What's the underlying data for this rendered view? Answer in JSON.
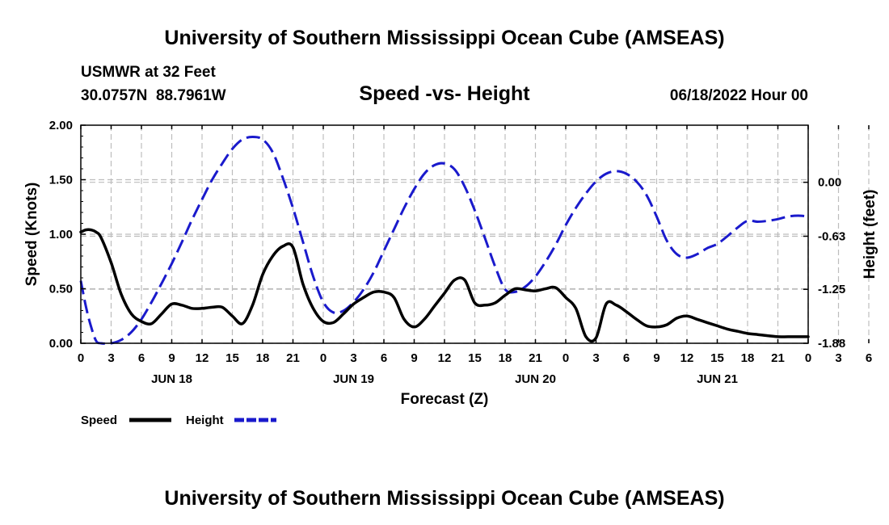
{
  "header": {
    "title": "University of Southern Mississippi Ocean Cube (AMSEAS)",
    "station": "USMWR at 32 Feet",
    "location": "30.0757N  88.7961W",
    "plot_title": "Speed -vs- Height",
    "issued": "06/18/2022 Hour 00"
  },
  "footer": {
    "title": "University of Southern Mississippi Ocean Cube (AMSEAS)"
  },
  "colors": {
    "speed": "#000000",
    "height": "#1a1acc",
    "grid": "#bdbdbd"
  },
  "chart_data": {
    "type": "line",
    "title": "Speed -vs- Height",
    "xlabel": "Forecast (Z)",
    "ylabel": "Speed (Knots)",
    "y2label": "Height (feet)",
    "xlim": [
      0,
      72
    ],
    "ylim": [
      0,
      2.0
    ],
    "y2lim": [
      -1.88,
      0.6667
    ],
    "grid": true,
    "legend_position": "bottom-left",
    "x_tick_labels": [
      "0",
      "3",
      "6",
      "9",
      "12",
      "15",
      "18",
      "21",
      "0",
      "3",
      "6",
      "9",
      "12",
      "15",
      "18",
      "21",
      "0",
      "3",
      "6",
      "9",
      "12",
      "15",
      "18",
      "21",
      "0",
      "3",
      "6",
      "9",
      "12",
      "15",
      "18",
      "21",
      "0"
    ],
    "day_labels": [
      {
        "label": "JUN 18",
        "hour": 9
      },
      {
        "label": "JUN 19",
        "hour": 27
      },
      {
        "label": "JUN 20",
        "hour": 45
      },
      {
        "label": "JUN 21",
        "hour": 63
      }
    ],
    "y_ticks": [
      "0.00",
      "0.50",
      "1.00",
      "1.50",
      "2.00"
    ],
    "y_tick_values": [
      0,
      0.5,
      1.0,
      1.5,
      2.0
    ],
    "y2_ticks": [
      "0.00",
      "-0.63",
      "-1.25",
      "-1.88"
    ],
    "y2_tick_values": [
      0,
      -0.63,
      -1.25,
      -1.88
    ],
    "series": [
      {
        "name": "Speed",
        "axis": "left",
        "style": "solid",
        "x": [
          0,
          0.5,
          1,
          1.5,
          2,
          3,
          4,
          5,
          6,
          7,
          8,
          9,
          10,
          11,
          12,
          13,
          14,
          15,
          16,
          17,
          18,
          19,
          20,
          21,
          22,
          23,
          24,
          25,
          26,
          27,
          28,
          29,
          30,
          31,
          32,
          33,
          34,
          35,
          36,
          37,
          38,
          39,
          40,
          41,
          42,
          43,
          44,
          45,
          46,
          47,
          48,
          49,
          50,
          51,
          52,
          53,
          54,
          55,
          56,
          57,
          58,
          59,
          60,
          61,
          62,
          63,
          64,
          65,
          66,
          67,
          68,
          69,
          70,
          71,
          72
        ],
        "values": [
          1.02,
          1.04,
          1.04,
          1.02,
          0.97,
          0.74,
          0.45,
          0.27,
          0.2,
          0.18,
          0.27,
          0.36,
          0.35,
          0.32,
          0.32,
          0.33,
          0.33,
          0.25,
          0.18,
          0.35,
          0.63,
          0.8,
          0.89,
          0.88,
          0.54,
          0.32,
          0.2,
          0.19,
          0.27,
          0.36,
          0.42,
          0.47,
          0.47,
          0.42,
          0.22,
          0.15,
          0.22,
          0.34,
          0.46,
          0.58,
          0.58,
          0.37,
          0.35,
          0.37,
          0.44,
          0.5,
          0.49,
          0.48,
          0.5,
          0.51,
          0.42,
          0.32,
          0.06,
          0.05,
          0.36,
          0.35,
          0.29,
          0.22,
          0.16,
          0.15,
          0.17,
          0.23,
          0.25,
          0.22,
          0.19,
          0.16,
          0.13,
          0.11,
          0.09,
          0.08,
          0.07,
          0.06,
          0.06,
          0.06,
          0.06
        ]
      },
      {
        "name": "Height",
        "axis": "right",
        "style": "dashed",
        "x": [
          0,
          0.5,
          1,
          1.5,
          2,
          3,
          4,
          5,
          6,
          7,
          8,
          9,
          10,
          11,
          12,
          13,
          14,
          15,
          16,
          17,
          18,
          19,
          20,
          21,
          22,
          23,
          24,
          25,
          26,
          27,
          28,
          29,
          30,
          31,
          32,
          33,
          34,
          35,
          36,
          37,
          38,
          39,
          40,
          41,
          42,
          43,
          44,
          45,
          46,
          47,
          48,
          49,
          50,
          51,
          52,
          53,
          54,
          55,
          56,
          57,
          58,
          59,
          60,
          61,
          62,
          63,
          64,
          65,
          66,
          67,
          68,
          69,
          70,
          71,
          72
        ],
        "values": [
          -1.15,
          -1.45,
          -1.68,
          -1.85,
          -1.88,
          -1.88,
          -1.84,
          -1.75,
          -1.6,
          -1.4,
          -1.18,
          -0.95,
          -0.7,
          -0.44,
          -0.2,
          0.03,
          0.22,
          0.39,
          0.5,
          0.53,
          0.5,
          0.35,
          0.05,
          -0.3,
          -0.7,
          -1.1,
          -1.4,
          -1.52,
          -1.5,
          -1.4,
          -1.25,
          -1.05,
          -0.8,
          -0.55,
          -0.3,
          -0.08,
          0.1,
          0.2,
          0.22,
          0.15,
          -0.05,
          -0.33,
          -0.65,
          -0.98,
          -1.25,
          -1.28,
          -1.22,
          -1.1,
          -0.93,
          -0.73,
          -0.5,
          -0.3,
          -0.13,
          0.01,
          0.1,
          0.13,
          0.1,
          0.01,
          -0.15,
          -0.4,
          -0.68,
          -0.84,
          -0.88,
          -0.84,
          -0.77,
          -0.72,
          -0.63,
          -0.53,
          -0.45,
          -0.46,
          -0.45,
          -0.43,
          -0.4,
          -0.39,
          -0.4
        ]
      }
    ]
  }
}
